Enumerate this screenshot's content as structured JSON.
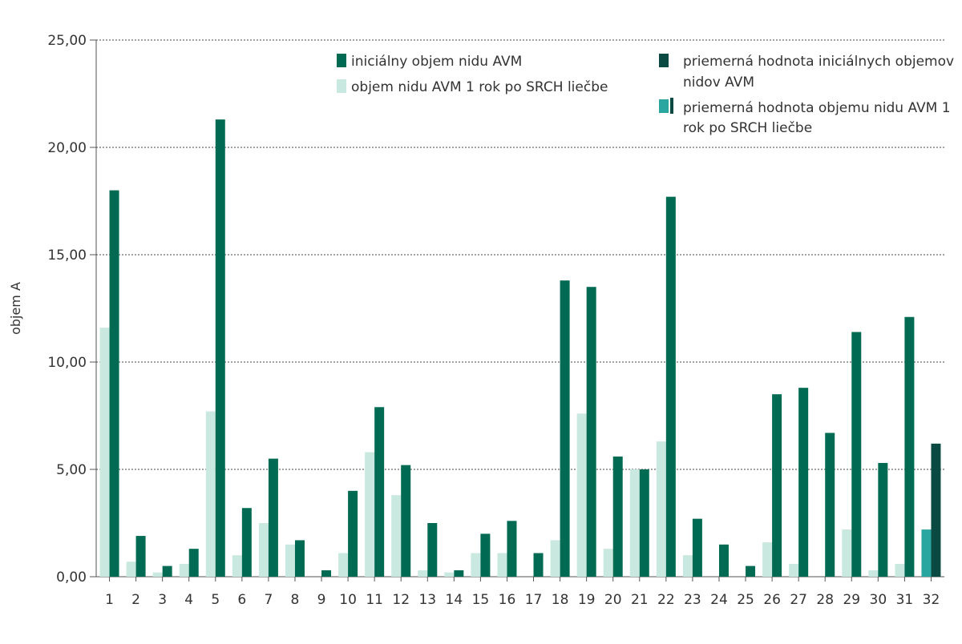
{
  "chart_data": {
    "type": "bar",
    "ylabel": "objem A",
    "ylim": [
      0,
      25
    ],
    "yticks": [
      0,
      5,
      10,
      15,
      20,
      25
    ],
    "ytick_labels": [
      "0,00",
      "5,00",
      "10,00",
      "15,00",
      "20,00",
      "25,00"
    ],
    "grid": true,
    "legend_position": "top",
    "categories": [
      "1",
      "2",
      "3",
      "4",
      "5",
      "6",
      "7",
      "8",
      "9",
      "10",
      "11",
      "12",
      "13",
      "14",
      "15",
      "16",
      "17",
      "18",
      "19",
      "20",
      "21",
      "22",
      "23",
      "24",
      "25",
      "26",
      "27",
      "28",
      "29",
      "30",
      "31",
      "32"
    ],
    "series": [
      {
        "name": "objem nidu AVM 1 rok po SRCH liečbe",
        "color": "#c9e8df",
        "values": [
          11.6,
          0.7,
          0.2,
          0.6,
          7.7,
          1.0,
          2.5,
          1.5,
          0.0,
          1.1,
          5.8,
          3.8,
          0.3,
          0.2,
          1.1,
          1.1,
          0.0,
          1.7,
          7.6,
          1.3,
          5.0,
          6.3,
          1.0,
          0.0,
          0.0,
          1.6,
          0.6,
          0.0,
          2.2,
          0.3,
          0.6,
          2.2
        ]
      },
      {
        "name": "iniciálny objem nidu AVM",
        "color": "#006b52",
        "values": [
          18.0,
          1.9,
          0.5,
          1.3,
          21.3,
          3.2,
          5.5,
          1.7,
          0.3,
          4.0,
          7.9,
          5.2,
          2.5,
          0.3,
          2.0,
          2.6,
          1.1,
          13.8,
          13.5,
          5.6,
          5.0,
          17.7,
          2.7,
          1.5,
          0.5,
          8.5,
          8.8,
          6.7,
          11.4,
          5.3,
          12.1,
          6.2
        ]
      }
    ],
    "highlight": {
      "category": "32",
      "colors": [
        "#2aa6a0",
        "#0a4a42"
      ]
    },
    "legend": [
      {
        "label": "iniciálny objem nidu AVM",
        "color": "#006b52"
      },
      {
        "label": "objem nidu AVM 1 rok po SRCH liečbe",
        "color": "#c9e8df"
      },
      {
        "label_lines": [
          "priemerná hodnota iniciálnych objemov",
          "nidov AVM"
        ],
        "color": "#0a4a42"
      },
      {
        "label_lines": [
          "priemerná hodnota objemu nidu AVM 1",
          "rok po SRCH liečbe"
        ],
        "color": "#2aa6a0",
        "accent": "#0a4a42"
      }
    ]
  }
}
